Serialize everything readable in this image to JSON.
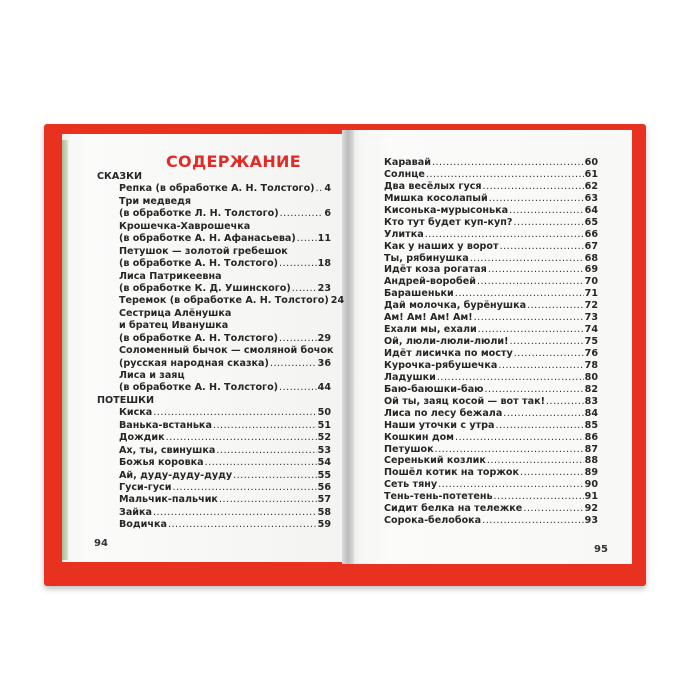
{
  "left_page": {
    "heading": "СОДЕРЖАНИЕ",
    "page_number": "94",
    "rows": [
      {
        "text": "СКАЗКИ",
        "section": true
      },
      {
        "text": "Репка (в обработке А. Н. Толстого)",
        "page": "4"
      },
      {
        "text": "Три медведя"
      },
      {
        "text": "(в обработке Л. Н. Толстого)",
        "page": "6"
      },
      {
        "text": "Крошечка-Хаврошечка"
      },
      {
        "text": "(в обработке А. Н. Афанасьева)",
        "page": "11"
      },
      {
        "text": "Петушок — золотой гребешок"
      },
      {
        "text": "(в обработке А. Н. Толстого)",
        "page": "18"
      },
      {
        "text": "Лиса Патрикеевна"
      },
      {
        "text": "(в обработке К. Д. Ушинского)",
        "page": "23"
      },
      {
        "text": "Теремок (в обработке А. Н. Толстого)",
        "page": "24"
      },
      {
        "text": "Сестрица Алёнушка"
      },
      {
        "text": "и братец Иванушка"
      },
      {
        "text": "(в обработке А. Н. Толстого)",
        "page": "29"
      },
      {
        "text": "Соломенный бычок — смоляной бочок"
      },
      {
        "text": "(русская народная сказка)",
        "page": "36"
      },
      {
        "text": "Лиса и заяц"
      },
      {
        "text": "(в обработке А. Н. Толстого)",
        "page": "44"
      },
      {
        "text": "ПОТЕШКИ",
        "section": true
      },
      {
        "text": "Киска",
        "page": "50"
      },
      {
        "text": "Ванька-встанька",
        "page": "51"
      },
      {
        "text": "Дождик",
        "page": "52"
      },
      {
        "text": "Ах, ты, свинушка",
        "page": "53"
      },
      {
        "text": "Божья коровка",
        "page": "54"
      },
      {
        "text": "Ай, дуду-дуду-дуду",
        "page": "55"
      },
      {
        "text": "Гуси-гуси",
        "page": "56"
      },
      {
        "text": "Мальчик-пальчик",
        "page": "57"
      },
      {
        "text": "Зайка",
        "page": "58"
      },
      {
        "text": "Водичка",
        "page": "59"
      }
    ]
  },
  "right_page": {
    "page_number": "95",
    "rows": [
      {
        "text": "Каравай",
        "page": "60"
      },
      {
        "text": "Солнце",
        "page": "61"
      },
      {
        "text": "Два весёлых гуся",
        "page": "62"
      },
      {
        "text": "Мишка косолапый",
        "page": "63"
      },
      {
        "text": "Кисонька-мурысонька",
        "page": "64"
      },
      {
        "text": "Кто тут будет куп-куп?",
        "page": "65"
      },
      {
        "text": "Улитка",
        "page": "66"
      },
      {
        "text": "Как у наших у ворот",
        "page": "67"
      },
      {
        "text": "Ты, рябинушка",
        "page": "68"
      },
      {
        "text": "Идёт коза рогатая",
        "page": "69"
      },
      {
        "text": "Андрей-воробей",
        "page": "70"
      },
      {
        "text": "Барашеньки",
        "page": "71"
      },
      {
        "text": "Дай молочка, бурёнушка",
        "page": "72"
      },
      {
        "text": "Ам! Ам! Ам! Ам!",
        "page": "73"
      },
      {
        "text": "Ехали мы, ехали",
        "page": "74"
      },
      {
        "text": "Ой, люли-люли-люли!",
        "page": "75"
      },
      {
        "text": "Идёт лисичка по мосту",
        "page": "76"
      },
      {
        "text": "Курочка-рябушечка",
        "page": "78"
      },
      {
        "text": "Ладушки",
        "page": "80"
      },
      {
        "text": "Баю-баюшки-баю",
        "page": "82"
      },
      {
        "text": "Ой ты, заяц косой — вот так!",
        "page": "83"
      },
      {
        "text": "Лиса по лесу бежала",
        "page": "84"
      },
      {
        "text": "Наши уточки с утра",
        "page": "85"
      },
      {
        "text": "Кошкин дом",
        "page": "86"
      },
      {
        "text": "Петушок",
        "page": "87"
      },
      {
        "text": "Серенький козлик",
        "page": "88"
      },
      {
        "text": "Пошёл котик на торжок",
        "page": "89"
      },
      {
        "text": "Сеть тяну",
        "page": "90"
      },
      {
        "text": "Тень-тень-потетень",
        "page": "91"
      },
      {
        "text": "Сидит белка на тележке",
        "page": "92"
      },
      {
        "text": "Сорока-белобока",
        "page": "93"
      }
    ]
  },
  "colors": {
    "cover": "#e8321f",
    "heading": "#e42a26",
    "text": "#262626"
  }
}
